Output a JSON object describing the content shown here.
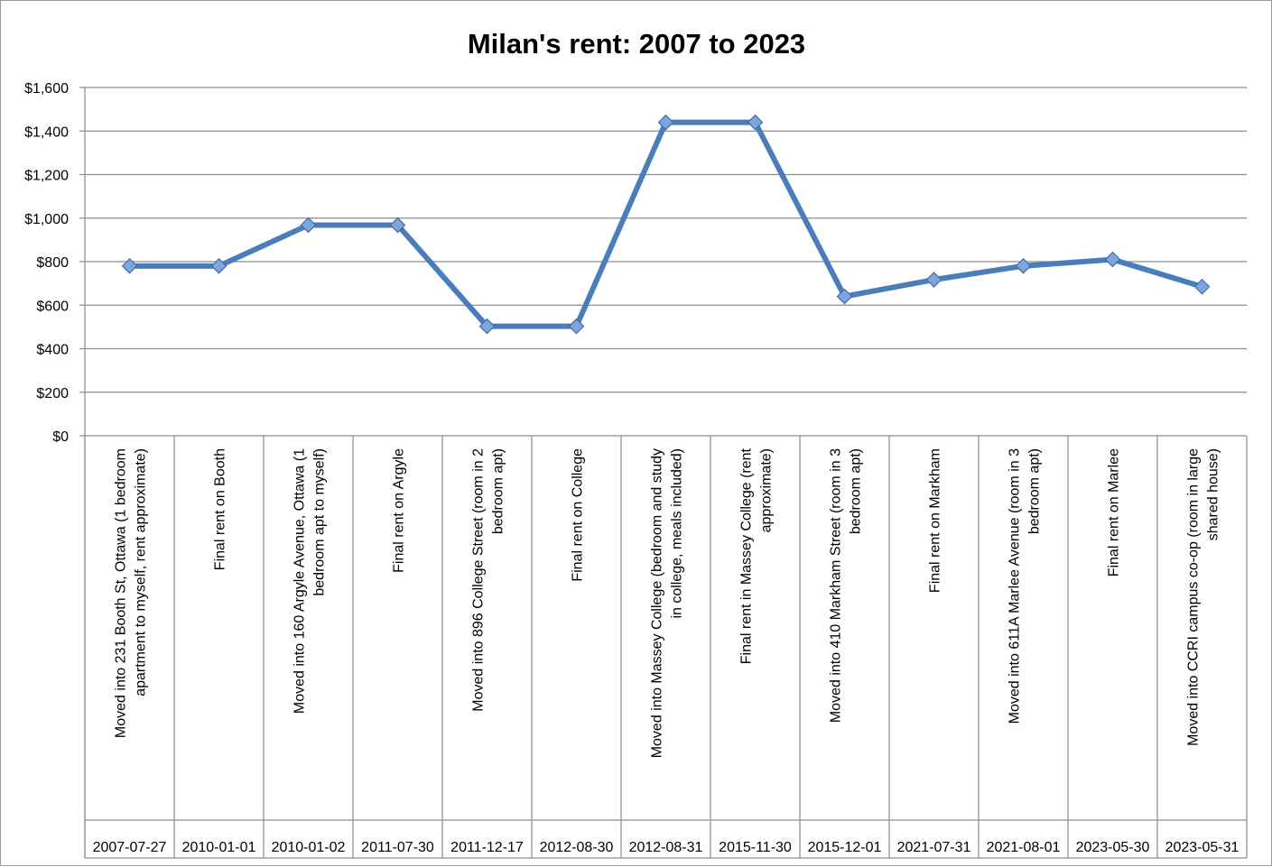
{
  "chart_data": {
    "type": "line",
    "title": "Milan's rent: 2007 to 2023",
    "xlabel": "",
    "ylabel": "",
    "ylim": [
      0,
      1600
    ],
    "yticks": [
      0,
      200,
      400,
      600,
      800,
      1000,
      1200,
      1400,
      1600
    ],
    "ytick_labels": [
      "$0",
      "$200",
      "$400",
      "$600",
      "$800",
      "$1,000",
      "$1,200",
      "$1,400",
      "$1,600"
    ],
    "grid": true,
    "legend": "none",
    "line_color": "#4a7ebb",
    "marker_color": "#7ea6dc",
    "categories": [
      {
        "label": "Moved into 231 Booth St, Ottawa (1 bedroom apartment to myself, rent approximate)",
        "date": "2007-07-27"
      },
      {
        "label": "Final rent on Booth",
        "date": "2010-01-01"
      },
      {
        "label": "Moved into 160 Argyle Avenue, Ottawa (1 bedroom apt to myself)",
        "date": "2010-01-02"
      },
      {
        "label": "Final rent on Argyle",
        "date": "2011-07-30"
      },
      {
        "label": "Moved into 896 College Street (room in 2 bedroom apt)",
        "date": "2011-12-17"
      },
      {
        "label": "Final rent on College",
        "date": "2012-08-30"
      },
      {
        "label": "Moved into Massey College (bedroom and study in college, meals included)",
        "date": "2012-08-31"
      },
      {
        "label": "Final rent in Massey College (rent approximate)",
        "date": "2015-11-30"
      },
      {
        "label": "Moved into 410 Markham Street (room in 3 bedroom apt)",
        "date": "2015-12-01"
      },
      {
        "label": "Final rent on Markham",
        "date": "2021-07-31"
      },
      {
        "label": "Moved into 611A Marlee Avenue (room in 3 bedroom apt)",
        "date": "2021-08-01"
      },
      {
        "label": "Final rent on Marlee",
        "date": "2023-05-30"
      },
      {
        "label": "Moved into CCRI campus co-op (room in large shared house)",
        "date": "2023-05-31"
      }
    ],
    "series": [
      {
        "values": [
          780,
          780,
          968,
          968,
          503,
          503,
          1440,
          1440,
          640,
          717,
          780,
          810,
          685
        ]
      }
    ]
  }
}
